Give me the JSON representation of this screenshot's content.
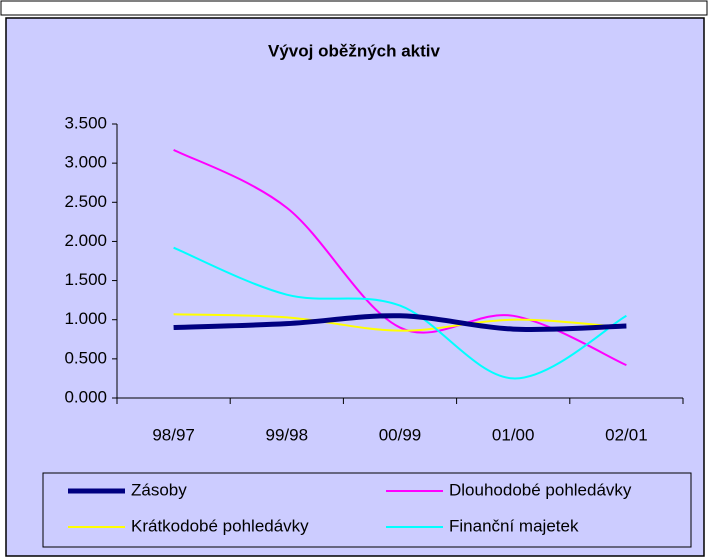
{
  "chart_data": {
    "type": "line",
    "title": "Vývoj oběžných aktiv",
    "categories": [
      "98/97",
      "99/98",
      "00/99",
      "01/00",
      "02/01"
    ],
    "series": [
      {
        "name": "Zásoby",
        "color": "#000080",
        "values": [
          0.9,
          0.95,
          1.05,
          0.88,
          0.92
        ]
      },
      {
        "name": "Dlouhodobé pohledávky",
        "color": "#ff00ff",
        "values": [
          3.17,
          2.43,
          0.9,
          1.05,
          0.42
        ]
      },
      {
        "name": "Krátkodobé pohledávky",
        "color": "#ffff00",
        "values": [
          1.07,
          1.03,
          0.86,
          1.0,
          0.9
        ]
      },
      {
        "name": "Finanční majetek",
        "color": "#00ffff",
        "values": [
          1.92,
          1.32,
          1.18,
          0.25,
          1.05
        ]
      }
    ],
    "ylim": [
      0,
      3.5
    ],
    "yticks": [
      {
        "value": 0,
        "label": "0.000"
      },
      {
        "value": 0.5,
        "label": "0.500"
      },
      {
        "value": 1,
        "label": "1.000"
      },
      {
        "value": 1.5,
        "label": "1.500"
      },
      {
        "value": 2,
        "label": "2.000"
      },
      {
        "value": 2.5,
        "label": "2.500"
      },
      {
        "value": 3,
        "label": "3.000"
      },
      {
        "value": 3.5,
        "label": "3.500"
      }
    ],
    "legend": "bottom"
  }
}
